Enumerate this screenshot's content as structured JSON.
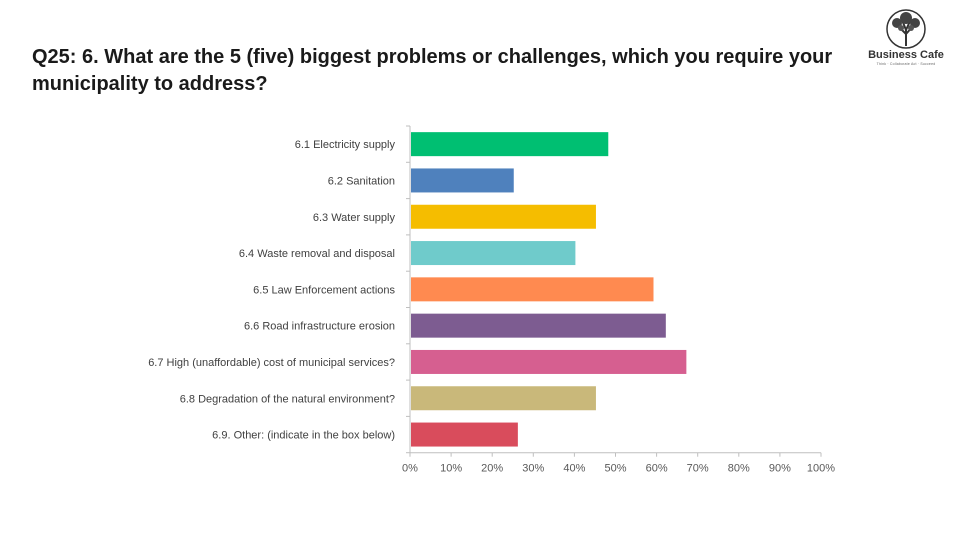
{
  "title": "Q25: 6. What are the 5 (five) biggest problems or challenges, which you require your municipality to address?",
  "logo": {
    "name": "Business Cafe",
    "tagline": "Think · Collaborate Act · Succeed",
    "icon": "tree-icon"
  },
  "chart_data": {
    "type": "bar",
    "orientation": "horizontal",
    "categories": [
      "6.1 Electricity supply",
      "6.2 Sanitation",
      "6.3 Water supply",
      "6.4 Waste removal and disposal",
      "6.5 Law Enforcement actions",
      "6.6 Road infrastructure erosion",
      "6.7 High (unaffordable) cost of municipal services?",
      "6.8 Degradation of the natural environment?",
      "6.9. Other: (indicate in the box below)"
    ],
    "values": [
      48,
      25,
      45,
      40,
      59,
      62,
      67,
      45,
      26
    ],
    "colors": [
      "#00bf72",
      "#4f81bd",
      "#f5bd00",
      "#6fcbcb",
      "#ff8a50",
      "#7d5c91",
      "#d65f90",
      "#c9b87a",
      "#d94c5c"
    ],
    "xlim": [
      0,
      100
    ],
    "xticks": [
      "0%",
      "10%",
      "20%",
      "30%",
      "40%",
      "50%",
      "60%",
      "70%",
      "80%",
      "90%",
      "100%"
    ],
    "xlabel": "",
    "ylabel": "",
    "grid": false,
    "legend": "none"
  }
}
